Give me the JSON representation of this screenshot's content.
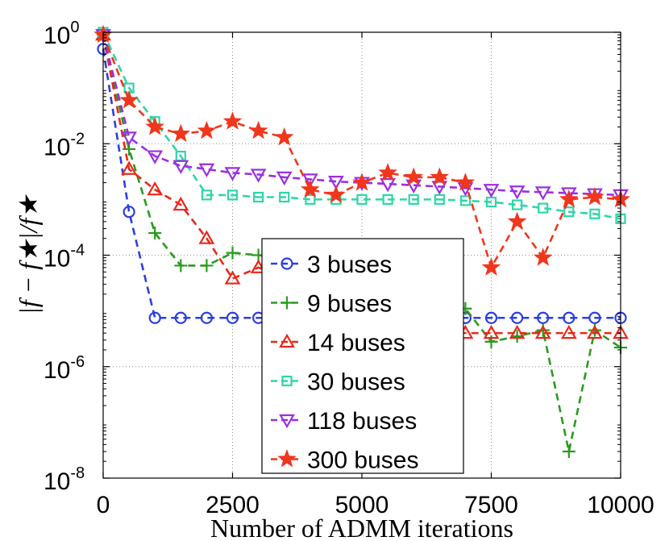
{
  "chart_data": {
    "type": "line",
    "yscale": "log",
    "xlabel": "Number of ADMM iterations",
    "ylabel": "|f − f★|/f★",
    "xlim": [
      0,
      10000
    ],
    "ylim": [
      1e-08,
      1
    ],
    "grid": true,
    "legend_position": "center",
    "x_ticks": [
      0,
      2500,
      5000,
      7500,
      10000
    ],
    "x_tick_labels": [
      "0",
      "2500",
      "5000",
      "7500",
      "10000"
    ],
    "y_ticks": [
      1,
      0.01,
      0.0001,
      1e-06,
      1e-08
    ],
    "y_tick_bases": [
      "10",
      "10",
      "10",
      "10",
      "10"
    ],
    "y_tick_exponents": [
      "0",
      "-2",
      "-4",
      "-6",
      "-8"
    ],
    "x": [
      0,
      500,
      1000,
      1500,
      2000,
      2500,
      3000,
      3500,
      4000,
      4500,
      5000,
      5500,
      6000,
      6500,
      7000,
      7500,
      8000,
      8500,
      9000,
      9500,
      10000
    ],
    "series": [
      {
        "name": "3 buses",
        "label": "3 buses",
        "color": "#2b3fe0",
        "marker": "circle",
        "values": [
          0.5,
          0.0006,
          7.5e-06,
          7.5e-06,
          7.5e-06,
          7.5e-06,
          7.5e-06,
          7.5e-06,
          7.5e-06,
          7.5e-06,
          7.5e-06,
          7.5e-06,
          7.5e-06,
          7.5e-06,
          7.5e-06,
          7.5e-06,
          7.5e-06,
          7.5e-06,
          7.5e-06,
          7.5e-06,
          7.5e-06
        ]
      },
      {
        "name": "9 buses",
        "label": "9 buses",
        "color": "#2a9a1f",
        "marker": "plus",
        "values": [
          0.9,
          0.008,
          0.00025,
          6.5e-05,
          6.5e-05,
          0.00011,
          0.0001,
          9e-05,
          7e-05,
          5e-05,
          3.5e-05,
          3e-05,
          2e-05,
          1.5e-05,
          1.1e-05,
          2.8e-06,
          3.5e-06,
          4.5e-06,
          3e-08,
          4.5e-06,
          2.2e-06
        ]
      },
      {
        "name": "14 buses",
        "label": "14 buses",
        "color": "#e8281a",
        "marker": "triangle-up",
        "values": [
          0.9,
          0.0035,
          0.0015,
          0.0008,
          0.0002,
          3.8e-05,
          6e-05,
          4e-05,
          2e-05,
          1.2e-05,
          7.5e-06,
          6e-06,
          5e-06,
          4.5e-06,
          4e-06,
          4e-06,
          4e-06,
          4e-06,
          4e-06,
          4e-06,
          4e-06
        ]
      },
      {
        "name": "30 buses",
        "label": "30 buses",
        "color": "#2fd6a8",
        "marker": "square",
        "values": [
          1.0,
          0.1,
          0.025,
          0.006,
          0.0012,
          0.0012,
          0.0011,
          0.0011,
          0.001,
          0.001,
          0.001,
          0.001,
          0.001,
          0.001,
          0.00095,
          0.0009,
          0.0008,
          0.0007,
          0.0006,
          0.00055,
          0.00045
        ]
      },
      {
        "name": "118 buses",
        "label": "118 buses",
        "color": "#9b2fe0",
        "marker": "triangle-down",
        "values": [
          0.9,
          0.013,
          0.006,
          0.004,
          0.0035,
          0.003,
          0.0028,
          0.0025,
          0.0023,
          0.0021,
          0.002,
          0.0019,
          0.0018,
          0.0017,
          0.0016,
          0.0015,
          0.0014,
          0.00135,
          0.0013,
          0.00125,
          0.0012
        ]
      },
      {
        "name": "300 buses",
        "label": "300 buses",
        "color": "#f0361c",
        "marker": "star",
        "values": [
          0.9,
          0.06,
          0.02,
          0.015,
          0.017,
          0.025,
          0.017,
          0.013,
          0.0015,
          0.0012,
          0.002,
          0.003,
          0.0025,
          0.0025,
          0.002,
          6e-05,
          0.0004,
          9e-05,
          0.001,
          0.0011,
          0.001
        ]
      }
    ]
  }
}
